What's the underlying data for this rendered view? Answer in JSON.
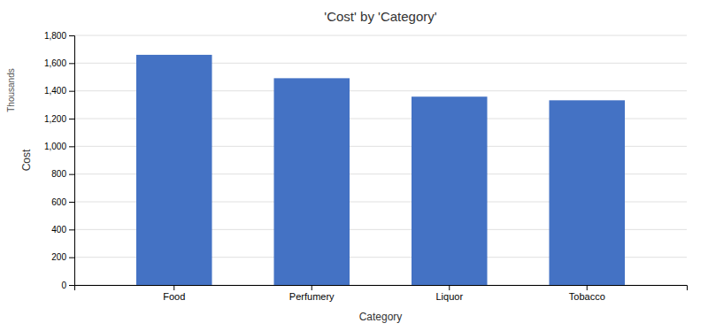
{
  "chart_data": {
    "type": "bar",
    "title": "'Cost' by 'Category'",
    "xlabel": "Category",
    "ylabel": "Cost",
    "annotations": [
      "Thousands"
    ],
    "categories": [
      "Food",
      "Perfumery",
      "Liquor",
      "Tobacco"
    ],
    "values": [
      1660.01,
      1491.212,
      1358.137,
      1331.975
    ],
    "color": "#4472C4",
    "ylim": [
      0,
      1800
    ],
    "yticks": [
      0,
      200,
      400,
      600,
      800,
      {
        "value": 1000,
        "label": "1,000"
      },
      {
        "value": 1200,
        "label": "1,200"
      },
      {
        "value": 1400,
        "label": "1,400"
      },
      {
        "value": 1600,
        "label": "1,600"
      },
      {
        "value": 1800,
        "label": "1,800"
      }
    ],
    "grid": true
  }
}
